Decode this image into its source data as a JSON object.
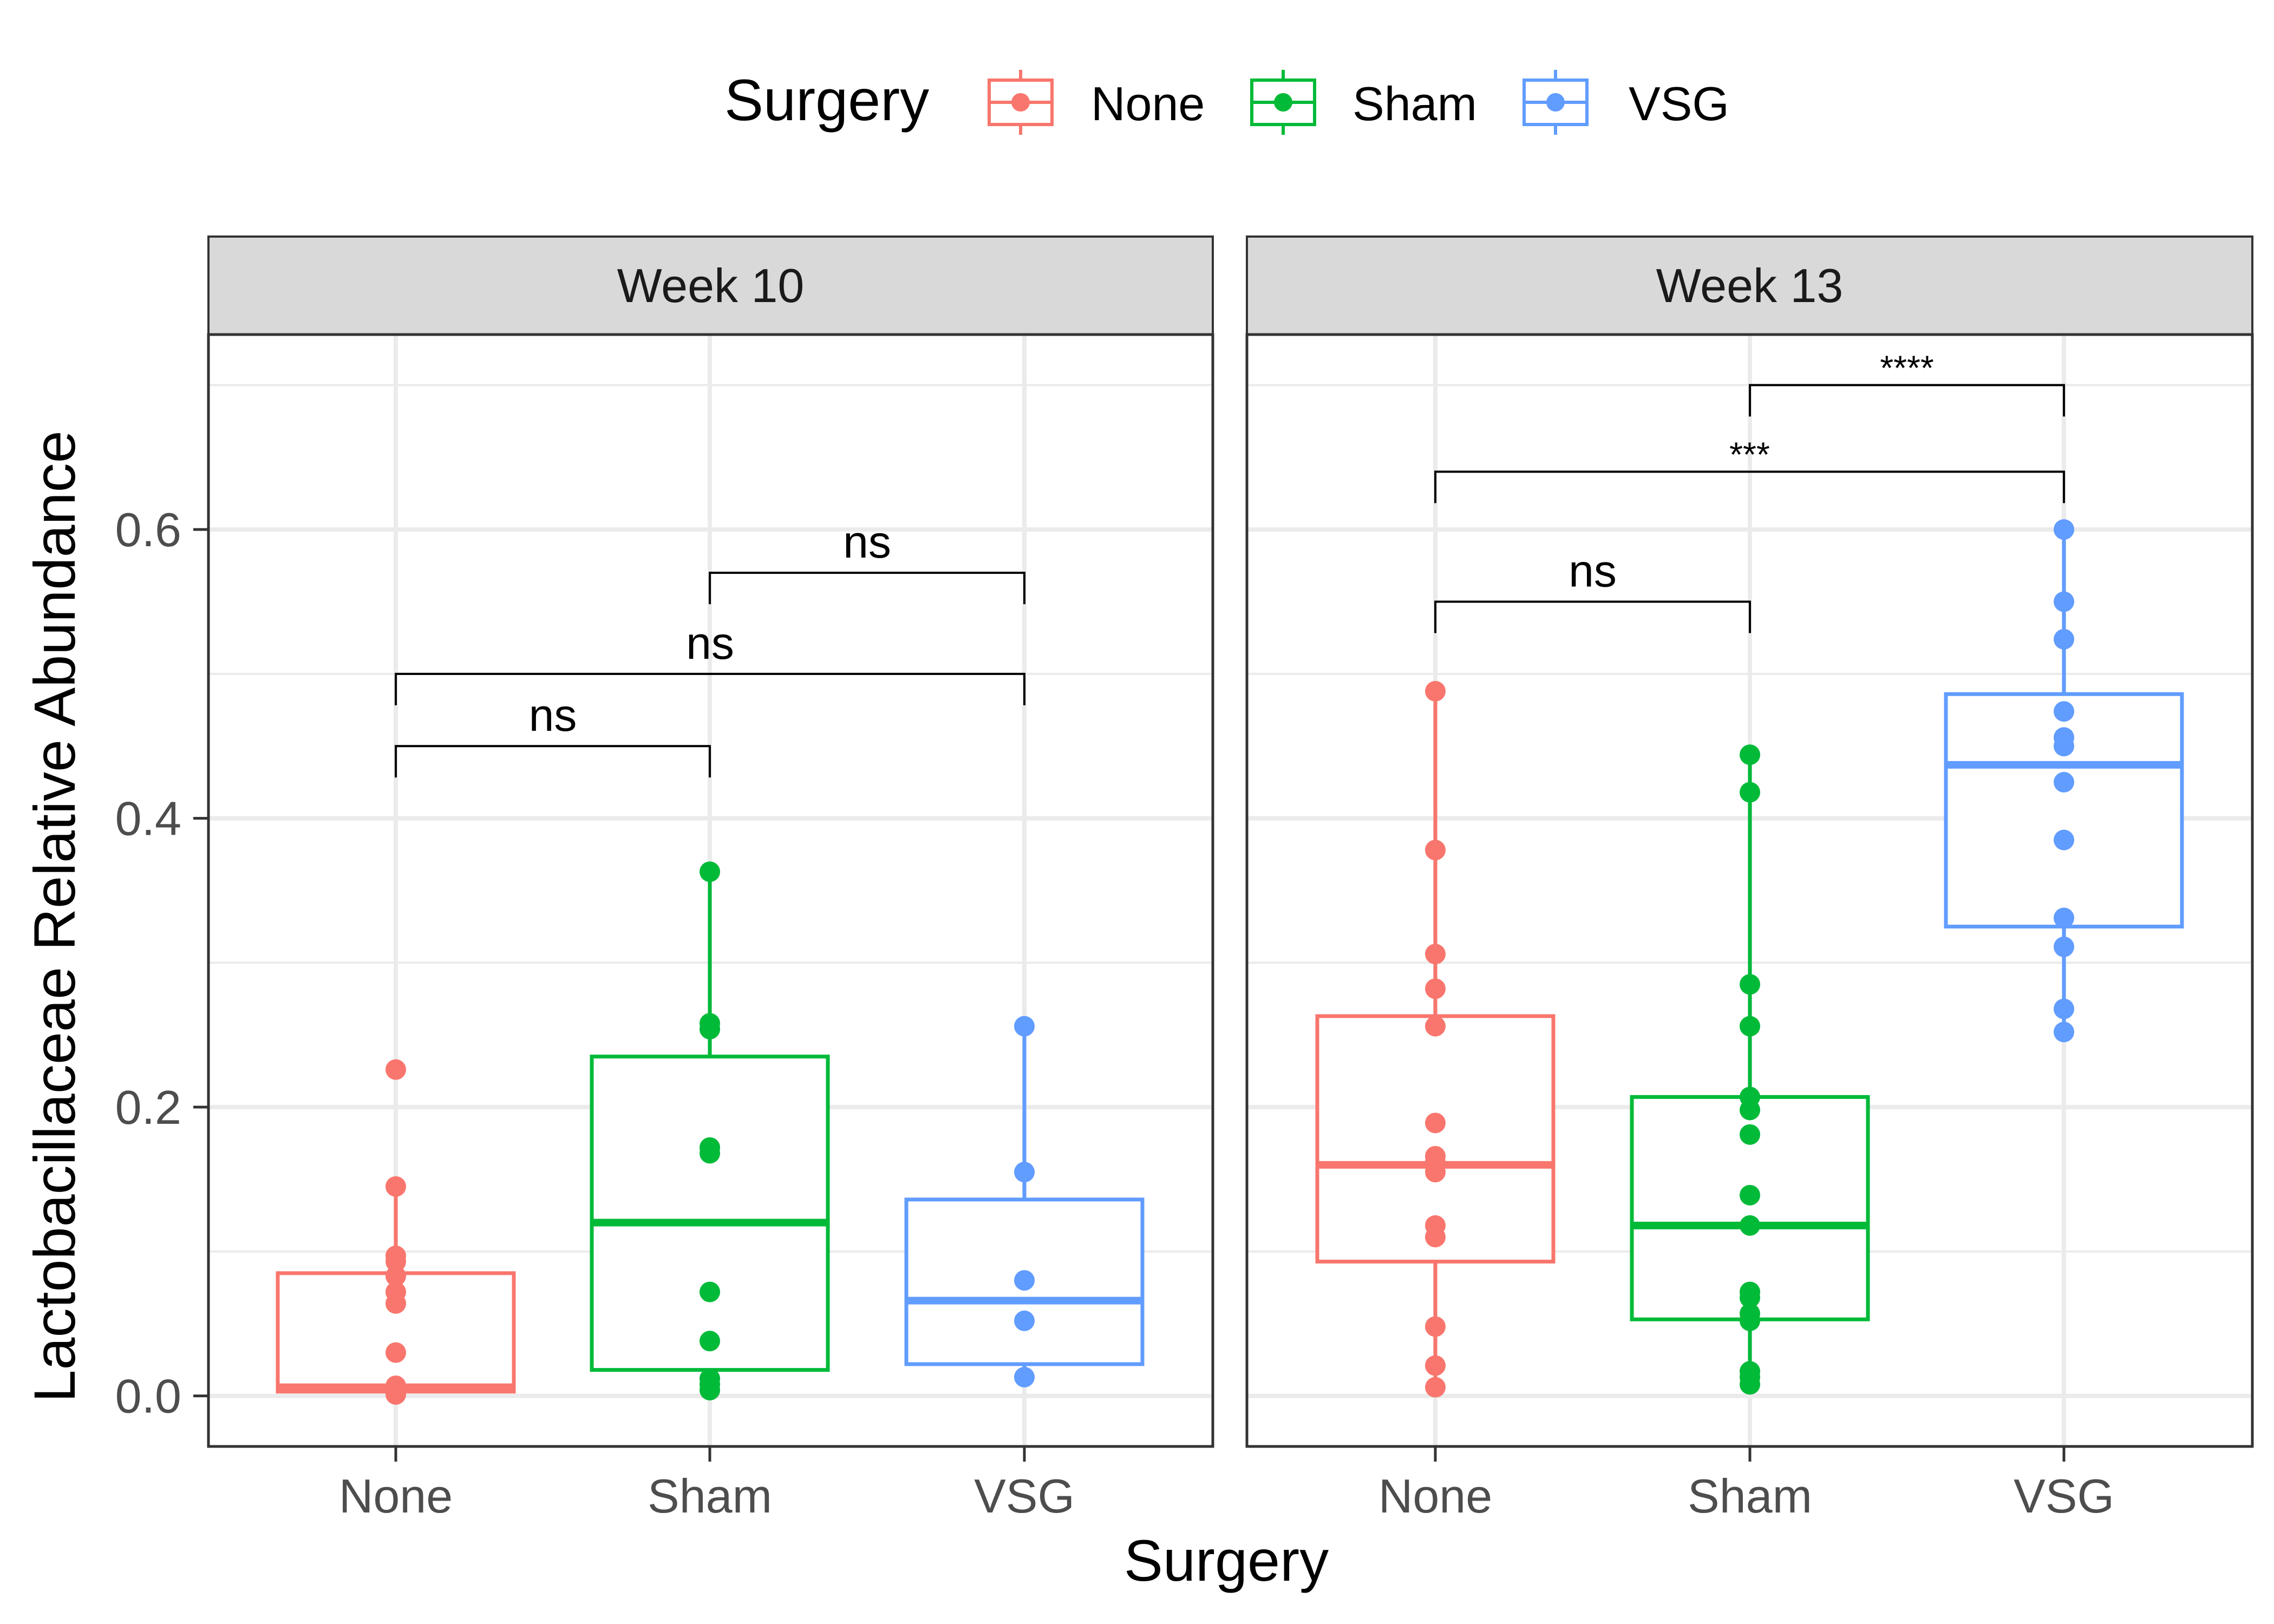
{
  "chart_data": {
    "type": "boxplot",
    "xlabel": "Surgery",
    "ylabel": "Lactobacillaceae Relative Abundance",
    "ylim": [
      -0.035,
      0.735
    ],
    "y_ticks": [
      0.0,
      0.2,
      0.4,
      0.6
    ],
    "y_tick_labels": [
      "0.0",
      "0.2",
      "0.4",
      "0.6"
    ],
    "categories": [
      "None",
      "Sham",
      "VSG"
    ],
    "grid": true,
    "legend": {
      "title": "Surgery",
      "position": "top",
      "entries": [
        {
          "name": "None",
          "color": "#F8766D"
        },
        {
          "name": "Sham",
          "color": "#00BA38"
        },
        {
          "name": "VSG",
          "color": "#619CFF"
        }
      ]
    },
    "panels": [
      {
        "label": "Week 10",
        "groups": [
          {
            "category": "None",
            "q1": 0.003,
            "median": 0.006,
            "q3": 0.085,
            "whisker_low": 0.0,
            "whisker_high": 0.145,
            "points": [
              0.226,
              0.145,
              0.097,
              0.093,
              0.083,
              0.072,
              0.064,
              0.03,
              0.007,
              0.004,
              0.002,
              0.001
            ]
          },
          {
            "category": "Sham",
            "q1": 0.018,
            "median": 0.12,
            "q3": 0.235,
            "whisker_low": 0.003,
            "whisker_high": 0.363,
            "points": [
              0.363,
              0.258,
              0.254,
              0.172,
              0.168,
              0.072,
              0.038,
              0.012,
              0.008,
              0.004
            ]
          },
          {
            "category": "VSG",
            "q1": 0.022,
            "median": 0.066,
            "q3": 0.136,
            "whisker_low": 0.013,
            "whisker_high": 0.256,
            "points": [
              0.256,
              0.155,
              0.08,
              0.052,
              0.013
            ]
          }
        ],
        "comparisons": [
          {
            "from": "None",
            "to": "Sham",
            "y": 0.45,
            "label": "ns",
            "size": "large"
          },
          {
            "from": "None",
            "to": "VSG",
            "y": 0.5,
            "label": "ns",
            "size": "large"
          },
          {
            "from": "Sham",
            "to": "VSG",
            "y": 0.57,
            "label": "ns",
            "size": "large"
          }
        ]
      },
      {
        "label": "Week 13",
        "groups": [
          {
            "category": "None",
            "q1": 0.093,
            "median": 0.16,
            "q3": 0.263,
            "whisker_low": 0.006,
            "whisker_high": 0.488,
            "points": [
              0.488,
              0.378,
              0.306,
              0.282,
              0.256,
              0.189,
              0.166,
              0.162,
              0.155,
              0.118,
              0.11,
              0.048,
              0.021,
              0.006
            ]
          },
          {
            "category": "Sham",
            "q1": 0.053,
            "median": 0.118,
            "q3": 0.207,
            "whisker_low": 0.008,
            "whisker_high": 0.444,
            "points": [
              0.444,
              0.418,
              0.285,
              0.256,
              0.207,
              0.198,
              0.181,
              0.139,
              0.118,
              0.072,
              0.068,
              0.057,
              0.052,
              0.017,
              0.013,
              0.008
            ]
          },
          {
            "category": "VSG",
            "q1": 0.325,
            "median": 0.437,
            "q3": 0.486,
            "whisker_low": 0.252,
            "whisker_high": 0.6,
            "points": [
              0.6,
              0.55,
              0.524,
              0.474,
              0.456,
              0.45,
              0.425,
              0.385,
              0.331,
              0.311,
              0.268,
              0.252
            ]
          }
        ],
        "comparisons": [
          {
            "from": "None",
            "to": "Sham",
            "y": 0.55,
            "label": "ns",
            "size": "large"
          },
          {
            "from": "None",
            "to": "VSG",
            "y": 0.64,
            "label": "***",
            "size": "small"
          },
          {
            "from": "Sham",
            "to": "VSG",
            "y": 0.7,
            "label": "****",
            "size": "small"
          }
        ]
      }
    ]
  }
}
